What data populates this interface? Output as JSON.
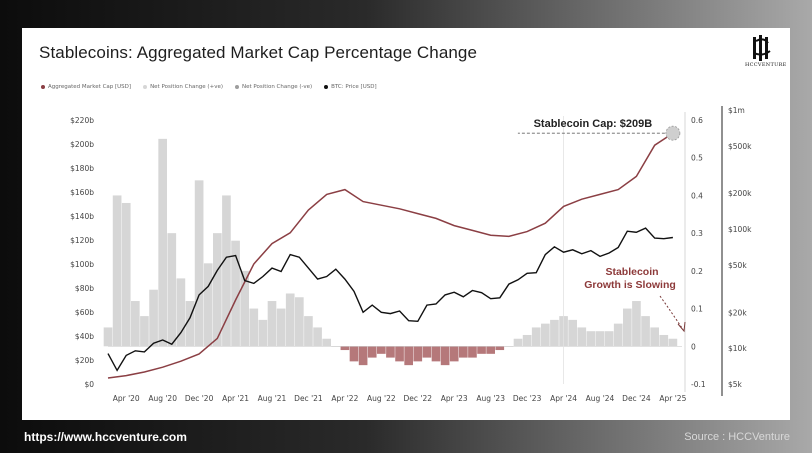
{
  "title": "Stablecoins: Aggregated Market Cap Percentage Change",
  "logo_text": "HCCVENTURE",
  "footer": {
    "url": "https://www.hccventure.com",
    "source": "Source : HCCVenture"
  },
  "legend": [
    {
      "label": "Aggregated Market Cap [USD]",
      "color": "#8b3f44"
    },
    {
      "label": "Net Position Change (+ve)",
      "color": "#d6d6d6"
    },
    {
      "label": "Net Position Change (-ve)",
      "color": "#9e9e9e"
    },
    {
      "label": "BTC: Price [USD]",
      "color": "#111111"
    }
  ],
  "annotations": {
    "cap_label": "Stablecoin Cap: $209B",
    "slowing_line1": "Stablecoin",
    "slowing_line2": "Growth is Slowing"
  },
  "chart_data": {
    "type": "line",
    "title": "Stablecoins: Aggregated Market Cap Percentage Change",
    "x_ticks": [
      "Apr '20",
      "Aug '20",
      "Dec '20",
      "Apr '21",
      "Aug '21",
      "Dec '21",
      "Apr '22",
      "Aug '22",
      "Dec '22",
      "Apr '23",
      "Aug '23",
      "Dec '23",
      "Apr '24",
      "Aug '24",
      "Dec '24",
      "Apr '25"
    ],
    "left_axis": {
      "ticks": [
        "$0",
        "$20b",
        "$40b",
        "$60b",
        "$80b",
        "$100b",
        "$120b",
        "$140b",
        "$160b",
        "$180b",
        "$200b",
        "$220b"
      ],
      "ylim": [
        0,
        220
      ]
    },
    "right_axis_pct": {
      "ticks": [
        "-0.1",
        "0",
        "0.1",
        "0.2",
        "0.3",
        "0.4",
        "0.5",
        "0.6"
      ],
      "ylim": [
        -0.1,
        0.6
      ]
    },
    "right_axis_btc": {
      "ticks": [
        "$5k",
        "$10k",
        "$20k",
        "$50k",
        "$100k",
        "$200k",
        "$500k",
        "$1m"
      ],
      "scale": "log"
    },
    "series": [
      {
        "name": "Aggregated Market Cap [USD]",
        "axis": "left_billions",
        "color": "#8b3f44",
        "x": [
          "2020-02",
          "2020-04",
          "2020-06",
          "2020-08",
          "2020-10",
          "2020-12",
          "2021-02",
          "2021-04",
          "2021-06",
          "2021-08",
          "2021-10",
          "2021-12",
          "2022-02",
          "2022-04",
          "2022-06",
          "2022-08",
          "2022-10",
          "2022-12",
          "2023-02",
          "2023-04",
          "2023-06",
          "2023-08",
          "2023-10",
          "2023-12",
          "2024-02",
          "2024-04",
          "2024-06",
          "2024-08",
          "2024-10",
          "2024-12",
          "2025-02",
          "2025-04"
        ],
        "values": [
          5,
          7,
          10,
          14,
          19,
          25,
          38,
          70,
          100,
          117,
          126,
          145,
          158,
          162,
          152,
          149,
          146,
          142,
          138,
          132,
          128,
          124,
          123,
          127,
          134,
          148,
          154,
          158,
          162,
          173,
          199,
          209
        ]
      },
      {
        "name": "BTC: Price [USD]",
        "axis": "right_btc_log",
        "color": "#111111",
        "x": [
          "2020-02",
          "2020-03",
          "2020-04",
          "2020-05",
          "2020-06",
          "2020-07",
          "2020-08",
          "2020-09",
          "2020-10",
          "2020-11",
          "2020-12",
          "2021-01",
          "2021-02",
          "2021-03",
          "2021-04",
          "2021-05",
          "2021-06",
          "2021-07",
          "2021-08",
          "2021-09",
          "2021-10",
          "2021-11",
          "2021-12",
          "2022-01",
          "2022-02",
          "2022-03",
          "2022-04",
          "2022-05",
          "2022-06",
          "2022-07",
          "2022-08",
          "2022-09",
          "2022-10",
          "2022-11",
          "2022-12",
          "2023-01",
          "2023-02",
          "2023-03",
          "2023-04",
          "2023-05",
          "2023-06",
          "2023-07",
          "2023-08",
          "2023-09",
          "2023-10",
          "2023-11",
          "2023-12",
          "2024-01",
          "2024-02",
          "2024-03",
          "2024-04",
          "2024-05",
          "2024-06",
          "2024-07",
          "2024-08",
          "2024-09",
          "2024-10",
          "2024-11",
          "2024-12",
          "2025-01",
          "2025-02",
          "2025-03",
          "2025-04"
        ],
        "values": [
          9000,
          6500,
          8700,
          9500,
          9300,
          11000,
          11700,
          10800,
          13500,
          18000,
          28000,
          33000,
          45000,
          58000,
          60000,
          37000,
          35000,
          40000,
          47000,
          44000,
          61000,
          58000,
          47000,
          38000,
          40000,
          46000,
          38000,
          30000,
          20000,
          23000,
          20000,
          19500,
          20500,
          17000,
          16800,
          23000,
          23500,
          28000,
          29500,
          27000,
          30500,
          29200,
          26000,
          26500,
          34500,
          37500,
          42500,
          43000,
          61000,
          71000,
          64000,
          67000,
          62000,
          66000,
          59000,
          63000,
          70000,
          96000,
          94000,
          102000,
          84000,
          83000,
          85000
        ]
      },
      {
        "name": "Net Position Change",
        "axis": "right_pct",
        "color_pos": "#d6d6d6",
        "color_neg": "#b5787a",
        "x": [
          "2020-02",
          "2020-03",
          "2020-04",
          "2020-05",
          "2020-06",
          "2020-07",
          "2020-08",
          "2020-09",
          "2020-10",
          "2020-11",
          "2020-12",
          "2021-01",
          "2021-02",
          "2021-03",
          "2021-04",
          "2021-05",
          "2021-06",
          "2021-07",
          "2021-08",
          "2021-09",
          "2021-10",
          "2021-11",
          "2021-12",
          "2022-01",
          "2022-02",
          "2022-03",
          "2022-04",
          "2022-05",
          "2022-06",
          "2022-07",
          "2022-08",
          "2022-09",
          "2022-10",
          "2022-11",
          "2022-12",
          "2023-01",
          "2023-02",
          "2023-03",
          "2023-04",
          "2023-05",
          "2023-06",
          "2023-07",
          "2023-08",
          "2023-09",
          "2023-10",
          "2023-11",
          "2023-12",
          "2024-01",
          "2024-02",
          "2024-03",
          "2024-04",
          "2024-05",
          "2024-06",
          "2024-07",
          "2024-08",
          "2024-09",
          "2024-10",
          "2024-11",
          "2024-12",
          "2025-01",
          "2025-02",
          "2025-03",
          "2025-04"
        ],
        "values": [
          0.05,
          0.4,
          0.38,
          0.12,
          0.08,
          0.15,
          0.55,
          0.3,
          0.18,
          0.12,
          0.44,
          0.22,
          0.3,
          0.4,
          0.28,
          0.2,
          0.1,
          0.07,
          0.12,
          0.1,
          0.14,
          0.13,
          0.08,
          0.05,
          0.02,
          0.0,
          -0.01,
          -0.04,
          -0.05,
          -0.03,
          -0.02,
          -0.03,
          -0.04,
          -0.05,
          -0.04,
          -0.03,
          -0.04,
          -0.05,
          -0.04,
          -0.03,
          -0.03,
          -0.02,
          -0.02,
          -0.01,
          0.0,
          0.02,
          0.03,
          0.05,
          0.06,
          0.07,
          0.08,
          0.07,
          0.05,
          0.04,
          0.04,
          0.04,
          0.06,
          0.1,
          0.12,
          0.08,
          0.05,
          0.03,
          0.02
        ]
      }
    ],
    "grid": false,
    "legend_position": "top-left"
  }
}
